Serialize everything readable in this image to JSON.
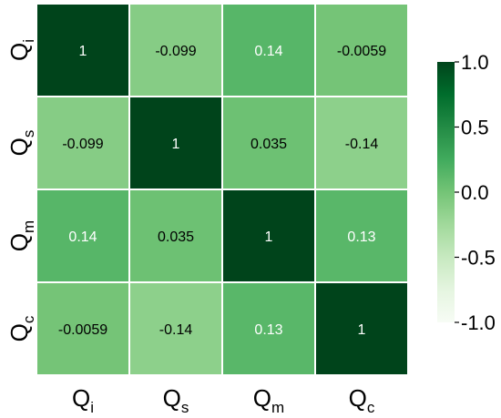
{
  "chart_data": {
    "type": "heatmap",
    "row_labels": [
      {
        "base": "Q",
        "sub": "i"
      },
      {
        "base": "Q",
        "sub": "s"
      },
      {
        "base": "Q",
        "sub": "m"
      },
      {
        "base": "Q",
        "sub": "c"
      }
    ],
    "col_labels": [
      {
        "base": "Q",
        "sub": "i"
      },
      {
        "base": "Q",
        "sub": "s"
      },
      {
        "base": "Q",
        "sub": "m"
      },
      {
        "base": "Q",
        "sub": "c"
      }
    ],
    "values": [
      [
        1,
        -0.099,
        0.14,
        -0.0059
      ],
      [
        -0.099,
        1,
        0.035,
        -0.14
      ],
      [
        0.14,
        0.035,
        1,
        0.13
      ],
      [
        -0.0059,
        -0.14,
        0.13,
        1
      ]
    ],
    "value_labels": [
      [
        "1",
        "-0.099",
        "0.14",
        "-0.0059"
      ],
      [
        "-0.099",
        "1",
        "0.035",
        "-0.14"
      ],
      [
        "0.14",
        "0.035",
        "1",
        "0.13"
      ],
      [
        "-0.0059",
        "-0.14",
        "0.13",
        "1"
      ]
    ],
    "colorbar": {
      "range": [
        -1.0,
        1.0
      ],
      "ticks": [
        1.0,
        0.5,
        0.0,
        -0.5,
        -1.0
      ],
      "tick_labels": [
        "1.0",
        "0.5",
        "0.0",
        "-0.5",
        "-1.0"
      ],
      "colormap": "Greens",
      "low_color": "#f7fcf5",
      "high_color": "#00441b"
    },
    "cell_line_color": "#ffffff"
  }
}
